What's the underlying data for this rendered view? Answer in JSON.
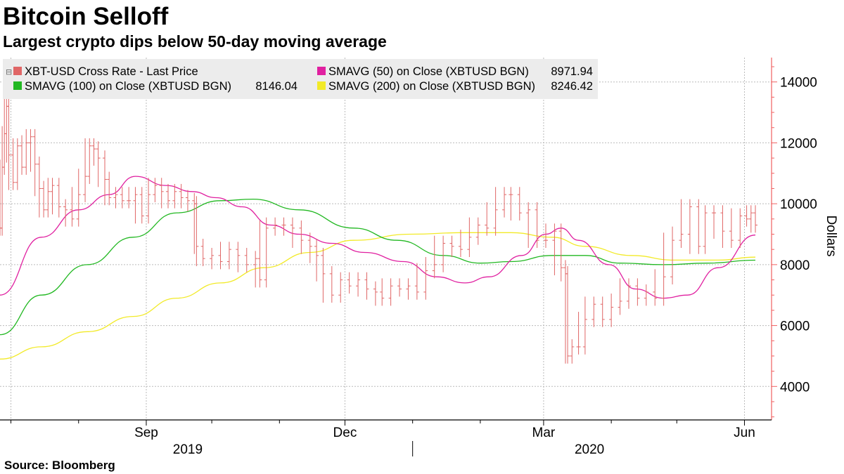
{
  "title": "Bitcoin Selloff",
  "subtitle": "Largest crypto dips below 50-day moving average",
  "source": "Source: Bloomberg",
  "chart_data": {
    "type": "line",
    "title": "Bitcoin Selloff",
    "subtitle": "Largest crypto dips below 50-day moving average",
    "ylabel": "Dollars",
    "xlabel": "",
    "ylim": [
      2900,
      14800
    ],
    "xlim": [
      "2019-06-26",
      "2020-06-06"
    ],
    "y_ticks": [
      4000,
      6000,
      8000,
      10000,
      12000,
      14000
    ],
    "x_ticks": [
      "Sep",
      "Dec",
      "Mar",
      "Jun"
    ],
    "x_years": [
      "2019",
      "2020"
    ],
    "grid": true,
    "y_axis_side": "right",
    "legend_position": "top-left",
    "colors": {
      "price": "#e06666",
      "sma50": "#e020a0",
      "sma100": "#22b822",
      "sma200": "#f2ea28",
      "axis": "#f06060",
      "grid": "#bbbbbb"
    },
    "series": [
      {
        "name": "XBT-USD Cross Rate - Last Price",
        "style": "ohlc-bar",
        "value_label": "",
        "points": [
          [
            "2019-06-26",
            9200
          ],
          [
            "2019-06-27",
            11200
          ],
          [
            "2019-06-28",
            12300
          ],
          [
            "2019-06-29",
            13200
          ],
          [
            "2019-06-30",
            11600
          ],
          [
            "2019-07-02",
            10700
          ],
          [
            "2019-07-04",
            11900
          ],
          [
            "2019-07-06",
            11200
          ],
          [
            "2019-07-08",
            12000
          ],
          [
            "2019-07-10",
            12200
          ],
          [
            "2019-07-12",
            11300
          ],
          [
            "2019-07-14",
            10500
          ],
          [
            "2019-07-16",
            9800
          ],
          [
            "2019-07-18",
            10400
          ],
          [
            "2019-07-20",
            10600
          ],
          [
            "2019-07-23",
            9900
          ],
          [
            "2019-07-26",
            9800
          ],
          [
            "2019-07-29",
            9500
          ],
          [
            "2019-08-01",
            10300
          ],
          [
            "2019-08-04",
            10900
          ],
          [
            "2019-08-06",
            11900
          ],
          [
            "2019-08-08",
            11800
          ],
          [
            "2019-08-10",
            11500
          ],
          [
            "2019-08-13",
            10800
          ],
          [
            "2019-08-15",
            10200
          ],
          [
            "2019-08-18",
            10300
          ],
          [
            "2019-08-21",
            10100
          ],
          [
            "2019-08-24",
            10100
          ],
          [
            "2019-08-27",
            10300
          ],
          [
            "2019-08-30",
            9600
          ],
          [
            "2019-09-02",
            10300
          ],
          [
            "2019-09-05",
            10600
          ],
          [
            "2019-09-08",
            10400
          ],
          [
            "2019-09-11",
            10100
          ],
          [
            "2019-09-14",
            10400
          ],
          [
            "2019-09-17",
            10200
          ],
          [
            "2019-09-20",
            10100
          ],
          [
            "2019-09-23",
            10000
          ],
          [
            "2019-09-24",
            8600
          ],
          [
            "2019-09-27",
            8200
          ],
          [
            "2019-10-01",
            8300
          ],
          [
            "2019-10-05",
            8100
          ],
          [
            "2019-10-09",
            8500
          ],
          [
            "2019-10-13",
            8300
          ],
          [
            "2019-10-17",
            8000
          ],
          [
            "2019-10-21",
            8200
          ],
          [
            "2019-10-23",
            7500
          ],
          [
            "2019-10-26",
            9200
          ],
          [
            "2019-10-30",
            9300
          ],
          [
            "2019-11-03",
            9300
          ],
          [
            "2019-11-07",
            9200
          ],
          [
            "2019-11-11",
            8800
          ],
          [
            "2019-11-15",
            8600
          ],
          [
            "2019-11-18",
            8300
          ],
          [
            "2019-11-21",
            7700
          ],
          [
            "2019-11-25",
            7000
          ],
          [
            "2019-11-29",
            7500
          ],
          [
            "2019-12-03",
            7300
          ],
          [
            "2019-12-07",
            7500
          ],
          [
            "2019-12-11",
            7200
          ],
          [
            "2019-12-15",
            7100
          ],
          [
            "2019-12-18",
            6900
          ],
          [
            "2019-12-22",
            7300
          ],
          [
            "2019-12-26",
            7200
          ],
          [
            "2019-12-30",
            7300
          ],
          [
            "2020-01-03",
            7100
          ],
          [
            "2020-01-07",
            7800
          ],
          [
            "2020-01-11",
            8000
          ],
          [
            "2020-01-15",
            8700
          ],
          [
            "2020-01-19",
            8600
          ],
          [
            "2020-01-23",
            8500
          ],
          [
            "2020-01-27",
            8900
          ],
          [
            "2020-01-31",
            9300
          ],
          [
            "2020-02-04",
            9200
          ],
          [
            "2020-02-08",
            9800
          ],
          [
            "2020-02-12",
            10300
          ],
          [
            "2020-02-15",
            10300
          ],
          [
            "2020-02-19",
            9700
          ],
          [
            "2020-02-23",
            9800
          ],
          [
            "2020-02-27",
            8800
          ],
          [
            "2020-03-02",
            8800
          ],
          [
            "2020-03-06",
            9100
          ],
          [
            "2020-03-09",
            7900
          ],
          [
            "2020-03-11",
            7700
          ],
          [
            "2020-03-12",
            5000
          ],
          [
            "2020-03-14",
            5300
          ],
          [
            "2020-03-17",
            5300
          ],
          [
            "2020-03-20",
            6200
          ],
          [
            "2020-03-24",
            6700
          ],
          [
            "2020-03-28",
            6200
          ],
          [
            "2020-04-01",
            6600
          ],
          [
            "2020-04-05",
            6800
          ],
          [
            "2020-04-09",
            7300
          ],
          [
            "2020-04-13",
            6900
          ],
          [
            "2020-04-17",
            7100
          ],
          [
            "2020-04-21",
            6900
          ],
          [
            "2020-04-25",
            7600
          ],
          [
            "2020-04-29",
            8800
          ],
          [
            "2020-05-03",
            9000
          ],
          [
            "2020-05-07",
            9900
          ],
          [
            "2020-05-11",
            8600
          ],
          [
            "2020-05-14",
            9700
          ],
          [
            "2020-05-18",
            9700
          ],
          [
            "2020-05-22",
            9100
          ],
          [
            "2020-05-26",
            8800
          ],
          [
            "2020-05-30",
            9600
          ],
          [
            "2020-06-02",
            9500
          ],
          [
            "2020-06-04",
            9700
          ],
          [
            "2020-06-06",
            9300
          ]
        ]
      },
      {
        "name": "SMAVG (50)  on Close (XBTUSD BGN)",
        "value_label": "8971.94",
        "points": [
          [
            "2019-06-26",
            7000
          ],
          [
            "2019-07-15",
            8900
          ],
          [
            "2019-08-01",
            9800
          ],
          [
            "2019-08-15",
            10300
          ],
          [
            "2019-08-27",
            10900
          ],
          [
            "2019-09-10",
            10600
          ],
          [
            "2019-09-22",
            10400
          ],
          [
            "2019-10-03",
            10200
          ],
          [
            "2019-10-15",
            9900
          ],
          [
            "2019-10-28",
            9300
          ],
          [
            "2019-11-10",
            9000
          ],
          [
            "2019-11-25",
            8700
          ],
          [
            "2019-12-10",
            8400
          ],
          [
            "2019-12-28",
            8100
          ],
          [
            "2020-01-12",
            7600
          ],
          [
            "2020-01-25",
            7400
          ],
          [
            "2020-02-05",
            7600
          ],
          [
            "2020-02-20",
            8300
          ],
          [
            "2020-03-02",
            9000
          ],
          [
            "2020-03-09",
            9200
          ],
          [
            "2020-03-17",
            8800
          ],
          [
            "2020-03-31",
            8000
          ],
          [
            "2020-04-12",
            7200
          ],
          [
            "2020-04-25",
            6900
          ],
          [
            "2020-05-06",
            7000
          ],
          [
            "2020-05-20",
            7900
          ],
          [
            "2020-06-06",
            8972
          ]
        ]
      },
      {
        "name": "SMAVG (100)  on Close (XBTUSD BGN)",
        "value_label": "8146.04",
        "points": [
          [
            "2019-06-26",
            5700
          ],
          [
            "2019-07-15",
            7000
          ],
          [
            "2019-08-05",
            8000
          ],
          [
            "2019-08-26",
            8900
          ],
          [
            "2019-09-15",
            9700
          ],
          [
            "2019-10-05",
            10100
          ],
          [
            "2019-10-20",
            10150
          ],
          [
            "2019-11-10",
            9800
          ],
          [
            "2019-12-05",
            9200
          ],
          [
            "2019-12-25",
            8800
          ],
          [
            "2020-01-15",
            8300
          ],
          [
            "2020-02-01",
            8050
          ],
          [
            "2020-02-15",
            8100
          ],
          [
            "2020-03-05",
            8300
          ],
          [
            "2020-03-20",
            8300
          ],
          [
            "2020-04-05",
            8050
          ],
          [
            "2020-04-25",
            8000
          ],
          [
            "2020-05-15",
            8050
          ],
          [
            "2020-06-06",
            8146
          ]
        ]
      },
      {
        "name": "SMAVG (200)  on Close (XBTUSD BGN)",
        "value_label": "8246.42",
        "points": [
          [
            "2019-06-26",
            4900
          ],
          [
            "2019-07-15",
            5300
          ],
          [
            "2019-08-05",
            5800
          ],
          [
            "2019-08-26",
            6300
          ],
          [
            "2019-09-15",
            6900
          ],
          [
            "2019-10-05",
            7400
          ],
          [
            "2019-10-25",
            7900
          ],
          [
            "2019-11-15",
            8400
          ],
          [
            "2019-12-05",
            8800
          ],
          [
            "2019-12-31",
            9000
          ],
          [
            "2020-01-25",
            9050
          ],
          [
            "2020-02-15",
            9050
          ],
          [
            "2020-03-05",
            8900
          ],
          [
            "2020-03-20",
            8600
          ],
          [
            "2020-04-10",
            8300
          ],
          [
            "2020-04-30",
            8150
          ],
          [
            "2020-05-20",
            8150
          ],
          [
            "2020-06-06",
            8246
          ]
        ]
      }
    ]
  }
}
